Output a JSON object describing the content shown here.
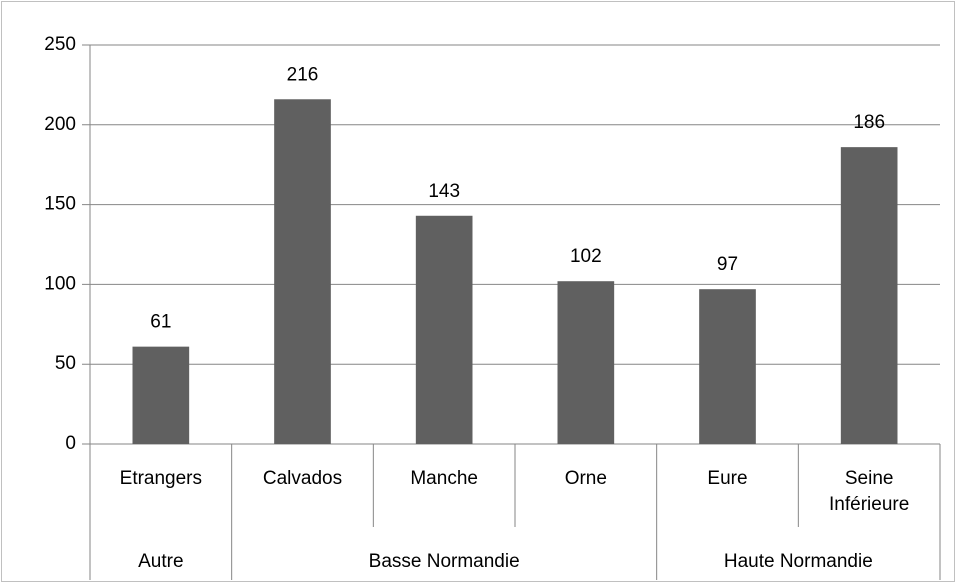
{
  "chart_data": {
    "type": "bar",
    "groups": [
      {
        "name": "Autre",
        "categories": [
          "Etrangers"
        ],
        "values": [
          61
        ]
      },
      {
        "name": "Basse Normandie",
        "categories": [
          "Calvados",
          "Manche",
          "Orne"
        ],
        "values": [
          216,
          143,
          102
        ]
      },
      {
        "name": "Haute Normandie",
        "categories": [
          "Eure",
          "Seine Inférieure"
        ],
        "values": [
          97,
          186
        ]
      }
    ],
    "color": "#606060",
    "ylim": [
      0,
      250
    ],
    "yticks": [
      0,
      50,
      100,
      150,
      200,
      250
    ],
    "grid": true
  }
}
